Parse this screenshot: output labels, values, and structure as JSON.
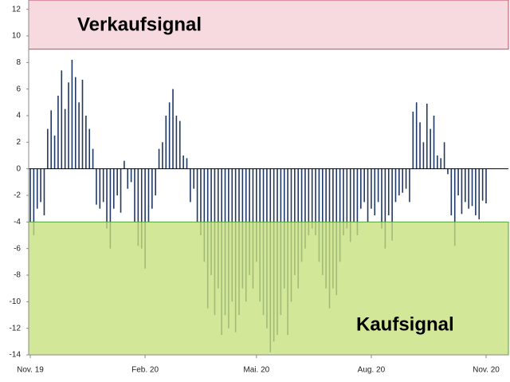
{
  "chart_data": {
    "type": "bar",
    "categories": [
      "Nov. 19",
      null,
      null,
      null,
      null,
      null,
      null,
      null,
      null,
      null,
      null,
      null,
      null,
      null,
      null,
      null,
      null,
      null,
      null,
      null,
      null,
      null,
      null,
      null,
      null,
      null,
      null,
      null,
      null,
      null,
      null,
      null,
      null,
      "Feb. 20",
      null,
      null,
      null,
      null,
      null,
      null,
      null,
      null,
      null,
      null,
      null,
      null,
      null,
      null,
      null,
      null,
      null,
      null,
      null,
      null,
      null,
      null,
      null,
      null,
      null,
      null,
      null,
      null,
      null,
      null,
      null,
      "Mai. 20",
      null,
      null,
      null,
      null,
      null,
      null,
      null,
      null,
      null,
      null,
      null,
      null,
      null,
      null,
      null,
      null,
      null,
      null,
      null,
      null,
      null,
      null,
      null,
      null,
      null,
      null,
      null,
      null,
      null,
      null,
      null,
      null,
      "Aug. 20",
      null,
      null,
      null,
      null,
      null,
      null,
      null,
      null,
      null,
      null,
      null,
      null,
      null,
      null,
      null,
      null,
      null,
      null,
      null,
      null,
      null,
      null,
      null,
      null,
      null,
      null,
      null,
      null,
      null,
      null,
      null,
      null,
      "Nov. 20"
    ],
    "values": [
      -4,
      -5,
      -3,
      -2.5,
      -3.5,
      3,
      4.4,
      2.5,
      5.5,
      7.4,
      4.5,
      6.5,
      8.2,
      6.9,
      5,
      6.7,
      4,
      3,
      1.5,
      -2.7,
      -3,
      -2.5,
      -4.5,
      -6,
      -3,
      -2,
      -3.3,
      0.6,
      -1.5,
      -1,
      -4,
      -5.8,
      -6,
      -7.5,
      -4,
      -3,
      -2,
      1.5,
      2,
      4,
      5,
      6,
      4,
      3.6,
      1,
      0.8,
      -2.5,
      -1.5,
      -4,
      -5,
      -7,
      -10.5,
      -8,
      -11,
      -9,
      -12.5,
      -11,
      -12,
      -10,
      -12.3,
      -11,
      -9,
      -10,
      -8,
      -9,
      -7,
      -10,
      -11,
      -12,
      -13.8,
      -13,
      -12.5,
      -11,
      -9,
      -12.5,
      -10,
      -8,
      -9,
      -7,
      -6,
      -5,
      -4.5,
      -5,
      -7,
      -8,
      -9,
      -10.5,
      -9,
      -9.5,
      -7,
      -5,
      -4.5,
      -5.5,
      -4,
      -5,
      -3,
      -2.5,
      -4,
      -3,
      -3.5,
      -2.5,
      -4.5,
      -6,
      -3.5,
      -5.4,
      -2.5,
      -2,
      -1.8,
      -1.5,
      -2.5,
      4.3,
      5,
      3.5,
      2,
      4.9,
      3,
      4,
      1,
      0.8,
      2,
      -0.4,
      -3.5,
      -5.8,
      -2,
      -3.4,
      -2.5,
      -3,
      -2.8,
      -3.5,
      -3.8,
      -2.4,
      -2.6
    ],
    "color": "#1f3864",
    "ylim": [
      -14,
      12.7
    ],
    "yticks": [
      -14,
      -12,
      -10,
      -8,
      -6,
      -4,
      -2,
      0,
      2,
      4,
      6,
      8,
      10,
      12
    ],
    "zones": [
      {
        "label": "Verkaufsignal",
        "from": 9,
        "to": 12.7,
        "color": "#f7d9e0",
        "border": "#c8455f"
      },
      {
        "label": "Kaufsignal",
        "from": -14,
        "to": -4,
        "color": "#c6e07c",
        "border": "#55a13a"
      }
    ]
  }
}
